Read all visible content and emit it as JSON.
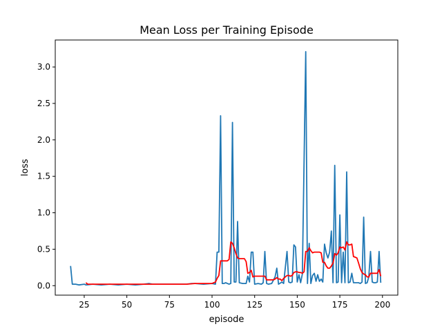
{
  "chart_data": {
    "type": "line",
    "title": "Mean Loss per Training Episode",
    "xlabel": "episode",
    "ylabel": "loss",
    "xlim": [
      8,
      209
    ],
    "ylim": [
      -0.13,
      3.37
    ],
    "xticks": [
      25,
      50,
      75,
      100,
      125,
      150,
      175,
      200
    ],
    "xtick_labels": [
      "25",
      "50",
      "75",
      "100",
      "125",
      "150",
      "175",
      "200"
    ],
    "yticks": [
      0.0,
      0.5,
      1.0,
      1.5,
      2.0,
      2.5,
      3.0
    ],
    "ytick_labels": [
      "0.0",
      "0.5",
      "1.0",
      "1.5",
      "2.0",
      "2.5",
      "3.0"
    ],
    "grid": false,
    "series": [
      {
        "color": "#1f77b4",
        "points": [
          [
            17,
            0.27
          ],
          [
            18,
            0.02
          ],
          [
            20,
            0.02
          ],
          [
            22,
            0.01
          ],
          [
            25,
            0.02
          ],
          [
            26,
            0.01
          ],
          [
            30,
            0.02
          ],
          [
            35,
            0.01
          ],
          [
            40,
            0.02
          ],
          [
            45,
            0.01
          ],
          [
            50,
            0.02
          ],
          [
            55,
            0.01
          ],
          [
            60,
            0.02
          ],
          [
            63,
            0.03
          ],
          [
            65,
            0.02
          ],
          [
            70,
            0.02
          ],
          [
            75,
            0.02
          ],
          [
            80,
            0.02
          ],
          [
            85,
            0.02
          ],
          [
            88,
            0.03
          ],
          [
            90,
            0.03
          ],
          [
            95,
            0.02
          ],
          [
            100,
            0.03
          ],
          [
            102,
            0.02
          ],
          [
            103,
            0.46
          ],
          [
            104,
            0.46
          ],
          [
            105,
            2.33
          ],
          [
            106,
            0.03
          ],
          [
            107,
            0.03
          ],
          [
            108,
            0.04
          ],
          [
            109,
            0.03
          ],
          [
            110,
            0.02
          ],
          [
            111,
            0.03
          ],
          [
            112,
            2.24
          ],
          [
            113,
            0.05
          ],
          [
            114,
            0.05
          ],
          [
            115,
            0.88
          ],
          [
            116,
            0.04
          ],
          [
            118,
            0.03
          ],
          [
            120,
            0.03
          ],
          [
            121,
            0.13
          ],
          [
            122,
            0.05
          ],
          [
            123,
            0.46
          ],
          [
            124,
            0.46
          ],
          [
            125,
            0.02
          ],
          [
            127,
            0.03
          ],
          [
            129,
            0.02
          ],
          [
            130,
            0.04
          ],
          [
            131,
            0.47
          ],
          [
            132,
            0.03
          ],
          [
            133,
            0.02
          ],
          [
            135,
            0.03
          ],
          [
            137,
            0.12
          ],
          [
            138,
            0.24
          ],
          [
            139,
            0.02
          ],
          [
            141,
            0.05
          ],
          [
            142,
            0.03
          ],
          [
            144,
            0.47
          ],
          [
            145,
            0.05
          ],
          [
            146,
            0.04
          ],
          [
            147,
            0.05
          ],
          [
            148,
            0.56
          ],
          [
            149,
            0.53
          ],
          [
            150,
            0.05
          ],
          [
            151,
            0.15
          ],
          [
            152,
            0.04
          ],
          [
            153,
            0.16
          ],
          [
            155,
            3.21
          ],
          [
            156,
            0.03
          ],
          [
            157,
            0.58
          ],
          [
            158,
            0.03
          ],
          [
            159,
            0.14
          ],
          [
            160,
            0.17
          ],
          [
            161,
            0.06
          ],
          [
            162,
            0.15
          ],
          [
            163,
            0.06
          ],
          [
            164,
            0.09
          ],
          [
            165,
            0.05
          ],
          [
            166,
            0.57
          ],
          [
            167,
            0.45
          ],
          [
            168,
            0.38
          ],
          [
            169,
            0.46
          ],
          [
            170,
            0.75
          ],
          [
            171,
            0.04
          ],
          [
            172,
            1.65
          ],
          [
            173,
            0.04
          ],
          [
            174,
            0.05
          ],
          [
            175,
            0.97
          ],
          [
            176,
            0.04
          ],
          [
            177,
            0.46
          ],
          [
            178,
            0.04
          ],
          [
            179,
            1.56
          ],
          [
            180,
            0.04
          ],
          [
            181,
            0.05
          ],
          [
            182,
            0.17
          ],
          [
            183,
            0.04
          ],
          [
            185,
            0.04
          ],
          [
            186,
            0.04
          ],
          [
            187,
            0.03
          ],
          [
            188,
            0.05
          ],
          [
            189,
            0.94
          ],
          [
            190,
            0.03
          ],
          [
            191,
            0.04
          ],
          [
            192,
            0.12
          ],
          [
            193,
            0.47
          ],
          [
            194,
            0.05
          ],
          [
            195,
            0.04
          ],
          [
            196,
            0.04
          ],
          [
            197,
            0.05
          ],
          [
            198,
            0.47
          ],
          [
            199,
            0.04
          ]
        ]
      },
      {
        "color": "#ff0000",
        "points": [
          [
            26,
            0.04
          ],
          [
            27,
            0.02
          ],
          [
            30,
            0.02
          ],
          [
            35,
            0.02
          ],
          [
            40,
            0.02
          ],
          [
            45,
            0.02
          ],
          [
            50,
            0.02
          ],
          [
            55,
            0.02
          ],
          [
            60,
            0.02
          ],
          [
            65,
            0.02
          ],
          [
            70,
            0.02
          ],
          [
            75,
            0.02
          ],
          [
            80,
            0.02
          ],
          [
            85,
            0.02
          ],
          [
            90,
            0.03
          ],
          [
            95,
            0.03
          ],
          [
            100,
            0.03
          ],
          [
            102,
            0.05
          ],
          [
            103,
            0.1
          ],
          [
            104,
            0.14
          ],
          [
            105,
            0.34
          ],
          [
            106,
            0.34
          ],
          [
            108,
            0.34
          ],
          [
            109,
            0.34
          ],
          [
            110,
            0.36
          ],
          [
            111,
            0.6
          ],
          [
            112,
            0.58
          ],
          [
            113,
            0.52
          ],
          [
            114,
            0.44
          ],
          [
            115,
            0.38
          ],
          [
            116,
            0.37
          ],
          [
            118,
            0.37
          ],
          [
            119,
            0.37
          ],
          [
            120,
            0.33
          ],
          [
            121,
            0.17
          ],
          [
            122,
            0.18
          ],
          [
            123,
            0.21
          ],
          [
            124,
            0.12
          ],
          [
            125,
            0.13
          ],
          [
            127,
            0.13
          ],
          [
            129,
            0.13
          ],
          [
            130,
            0.13
          ],
          [
            131,
            0.13
          ],
          [
            132,
            0.08
          ],
          [
            134,
            0.08
          ],
          [
            136,
            0.08
          ],
          [
            137,
            0.09
          ],
          [
            138,
            0.11
          ],
          [
            139,
            0.09
          ],
          [
            140,
            0.09
          ],
          [
            141,
            0.07
          ],
          [
            142,
            0.1
          ],
          [
            144,
            0.14
          ],
          [
            145,
            0.14
          ],
          [
            146,
            0.13
          ],
          [
            147,
            0.14
          ],
          [
            148,
            0.18
          ],
          [
            149,
            0.19
          ],
          [
            150,
            0.19
          ],
          [
            151,
            0.18
          ],
          [
            152,
            0.18
          ],
          [
            153,
            0.17
          ],
          [
            154,
            0.19
          ],
          [
            155,
            0.47
          ],
          [
            156,
            0.47
          ],
          [
            157,
            0.52
          ],
          [
            158,
            0.48
          ],
          [
            159,
            0.45
          ],
          [
            160,
            0.46
          ],
          [
            161,
            0.46
          ],
          [
            162,
            0.46
          ],
          [
            163,
            0.46
          ],
          [
            164,
            0.45
          ],
          [
            165,
            0.32
          ],
          [
            166,
            0.32
          ],
          [
            167,
            0.27
          ],
          [
            168,
            0.24
          ],
          [
            169,
            0.24
          ],
          [
            170,
            0.27
          ],
          [
            171,
            0.31
          ],
          [
            172,
            0.44
          ],
          [
            173,
            0.42
          ],
          [
            174,
            0.45
          ],
          [
            175,
            0.53
          ],
          [
            176,
            0.52
          ],
          [
            177,
            0.53
          ],
          [
            178,
            0.49
          ],
          [
            179,
            0.6
          ],
          [
            180,
            0.56
          ],
          [
            181,
            0.56
          ],
          [
            182,
            0.57
          ],
          [
            183,
            0.4
          ],
          [
            184,
            0.39
          ],
          [
            185,
            0.38
          ],
          [
            186,
            0.31
          ],
          [
            187,
            0.23
          ],
          [
            188,
            0.18
          ],
          [
            189,
            0.16
          ],
          [
            190,
            0.15
          ],
          [
            191,
            0.12
          ],
          [
            192,
            0.12
          ],
          [
            193,
            0.17
          ],
          [
            194,
            0.17
          ],
          [
            195,
            0.17
          ],
          [
            196,
            0.17
          ],
          [
            197,
            0.17
          ],
          [
            198,
            0.22
          ],
          [
            199,
            0.13
          ]
        ]
      }
    ]
  }
}
